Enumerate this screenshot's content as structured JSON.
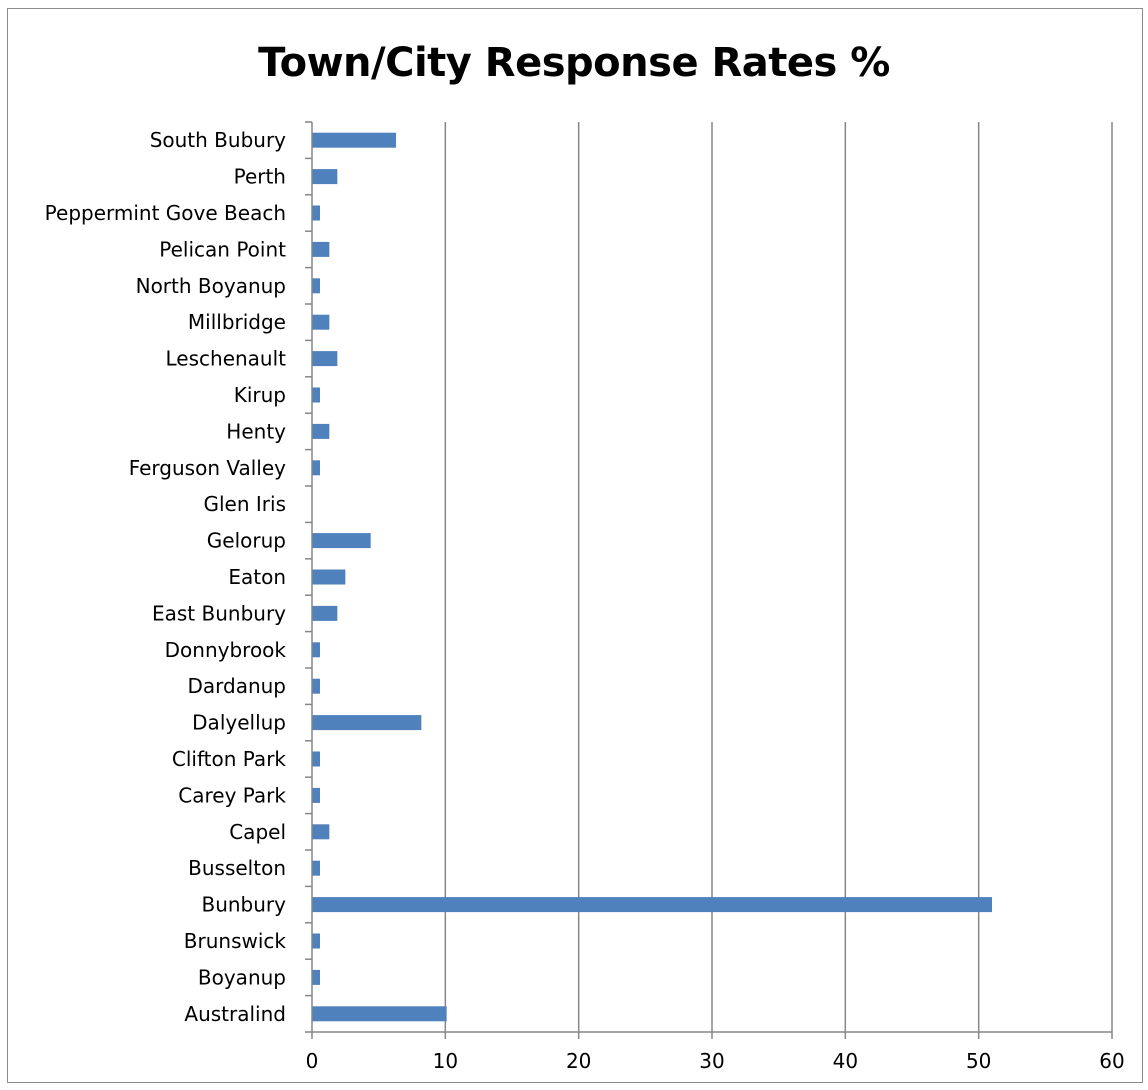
{
  "chart_data": {
    "type": "bar",
    "orientation": "horizontal",
    "title": "Town/City Response Rates %",
    "xlabel": "",
    "ylabel": "",
    "xlim": [
      0,
      60
    ],
    "x_ticks": [
      0,
      10,
      20,
      30,
      40,
      50,
      60
    ],
    "grid": "vertical-major",
    "bar_color": "#4f81bd",
    "categories": [
      "South Bubury",
      "Perth",
      "Peppermint Gove Beach",
      "Pelican Point",
      "North Boyanup",
      "Millbridge",
      "Leschenault",
      "Kirup",
      "Henty",
      "Ferguson Valley",
      "Glen Iris",
      "Gelorup",
      "Eaton",
      "East Bunbury",
      "Donnybrook",
      "Dardanup",
      "Dalyellup",
      "Clifton Park",
      "Carey Park",
      "Capel",
      "Busselton",
      "Bunbury",
      "Brunswick",
      "Boyanup",
      "Australind"
    ],
    "values": [
      6.3,
      1.9,
      0.6,
      1.3,
      0.6,
      1.3,
      1.9,
      0.6,
      1.3,
      0.6,
      0,
      4.4,
      2.5,
      1.9,
      0.6,
      0.6,
      8.2,
      0.6,
      0.6,
      1.3,
      0.6,
      51.0,
      0.6,
      0.6,
      10.1
    ]
  }
}
